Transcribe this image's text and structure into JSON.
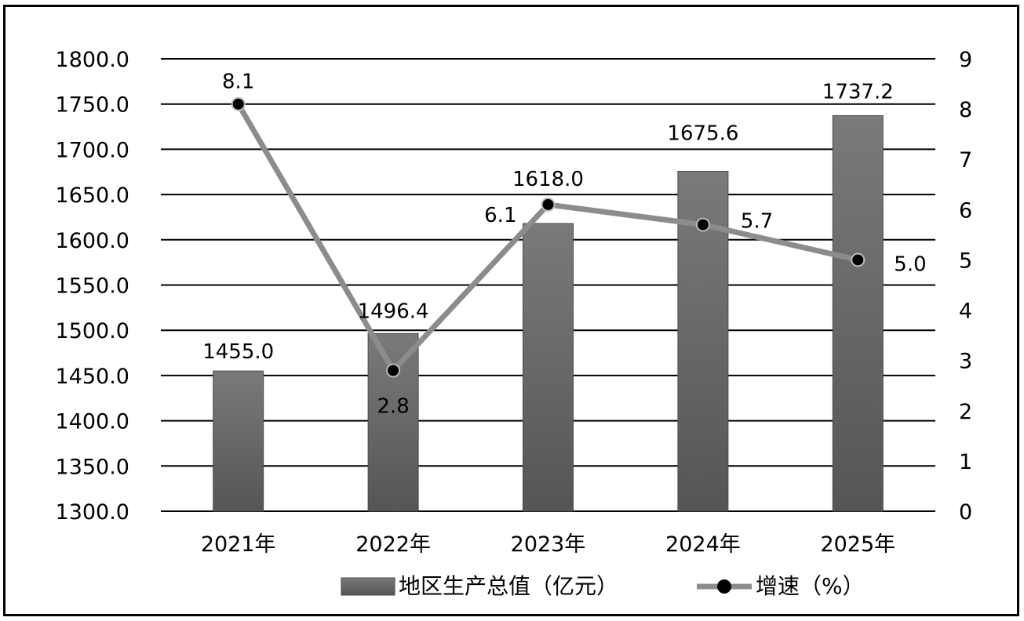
{
  "chart_data": {
    "type": "bar",
    "categories": [
      "2021年",
      "2022年",
      "2023年",
      "2024年",
      "2025年"
    ],
    "series": [
      {
        "name": "地区生产总值（亿元）",
        "type": "bar",
        "axis": "left",
        "values": [
          1455.0,
          1496.4,
          1618.0,
          1675.6,
          1737.2
        ],
        "labels": [
          "1455.0",
          "1496.4",
          "1618.0",
          "1675.6",
          "1737.2"
        ],
        "color": "#6b6b6b"
      },
      {
        "name": "增速（%）",
        "type": "line",
        "axis": "right",
        "values": [
          8.1,
          2.8,
          6.1,
          5.7,
          5.0
        ],
        "labels": [
          "8.1",
          "2.8",
          "6.1",
          "5.7",
          "5.0"
        ],
        "color": "#8c8c8c",
        "marker_color": "#000000"
      }
    ],
    "y_left": {
      "range": [
        1300,
        1800
      ],
      "ticks": [
        "1300.0",
        "1350.0",
        "1400.0",
        "1450.0",
        "1500.0",
        "1550.0",
        "1600.0",
        "1650.0",
        "1700.0",
        "1750.0",
        "1800.0"
      ]
    },
    "y_right": {
      "range": [
        0,
        9
      ],
      "ticks": [
        "0",
        "1",
        "2",
        "3",
        "4",
        "5",
        "6",
        "7",
        "8",
        "9"
      ]
    },
    "grid": true,
    "legend_position": "bottom"
  }
}
